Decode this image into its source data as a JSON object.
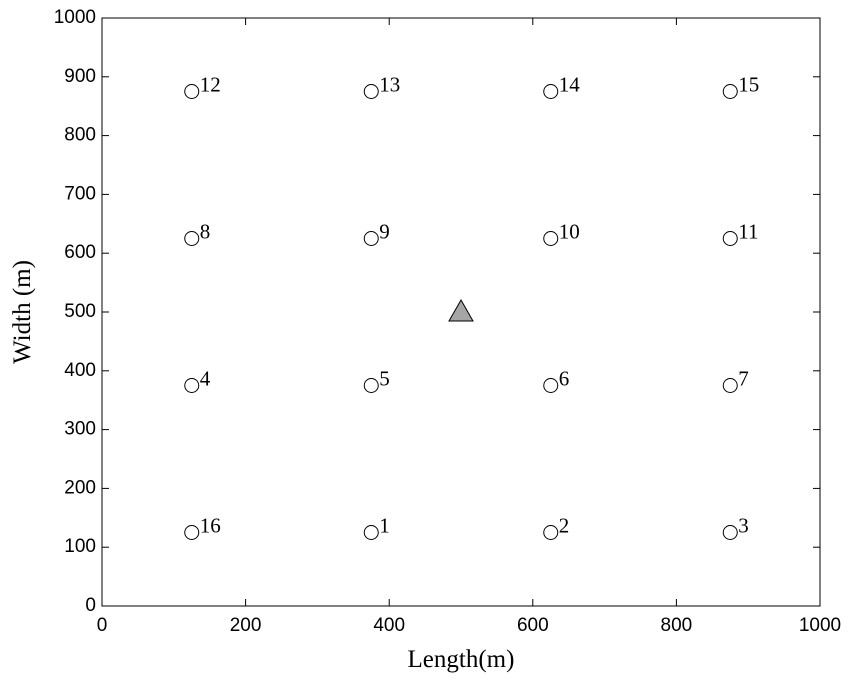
{
  "chart_data": {
    "type": "scatter",
    "xlabel": "Length(m)",
    "ylabel": "Width (m)",
    "xlim": [
      0,
      1000
    ],
    "ylim": [
      0,
      1000
    ],
    "xticks": [
      0,
      200,
      400,
      600,
      800,
      1000
    ],
    "yticks": [
      0,
      100,
      200,
      300,
      400,
      500,
      600,
      700,
      800,
      900,
      1000
    ],
    "series": [
      {
        "marker": "circle",
        "color": "#ffffff",
        "x": [
          375,
          625,
          875,
          125,
          375,
          625,
          875,
          125,
          375,
          625,
          875,
          125,
          375,
          625,
          875,
          125
        ],
        "values": [
          125,
          125,
          125,
          375,
          375,
          375,
          375,
          625,
          625,
          625,
          625,
          875,
          875,
          875,
          875,
          125
        ],
        "labels": [
          "1",
          "2",
          "3",
          "4",
          "5",
          "6",
          "7",
          "8",
          "9",
          "10",
          "11",
          "12",
          "13",
          "14",
          "15",
          "16"
        ]
      },
      {
        "marker": "triangle",
        "color": "#a6a6a6",
        "x": [
          500
        ],
        "values": [
          500
        ]
      }
    ]
  }
}
